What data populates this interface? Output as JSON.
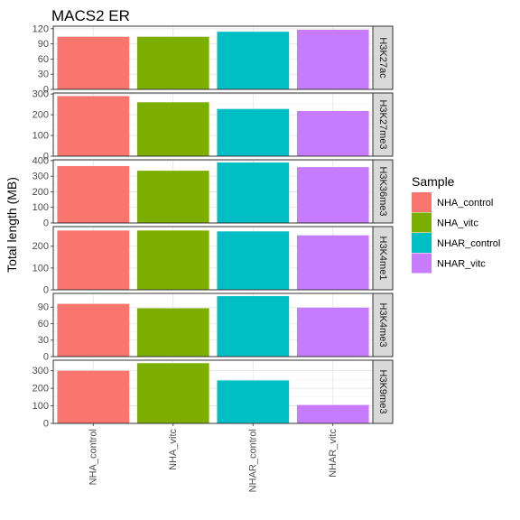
{
  "chart_data": {
    "type": "bar",
    "title": "MACS2 ER",
    "xlabel": "",
    "ylabel": "Total length (MB)",
    "categories": [
      "NHA_control",
      "NHA_vitc",
      "NHAR_control",
      "NHAR_vitc"
    ],
    "colors": [
      "#F8766D",
      "#7CAE00",
      "#00BFC4",
      "#C77CFF"
    ],
    "legend": {
      "title": "Sample",
      "position": "right",
      "entries": [
        "NHA_control",
        "NHA_vitc",
        "NHAR_control",
        "NHAR_vitc"
      ]
    },
    "grid": true,
    "panels": [
      {
        "label": "H3K27ac",
        "ylim": [
          0,
          125
        ],
        "ticks": [
          0,
          30,
          60,
          90,
          120
        ],
        "values": [
          104,
          104,
          114,
          118
        ]
      },
      {
        "label": "H3K27me3",
        "ylim": [
          0,
          305
        ],
        "ticks": [
          0,
          100,
          200,
          300
        ],
        "values": [
          290,
          260,
          228,
          218
        ]
      },
      {
        "label": "H3K36me3",
        "ylim": [
          0,
          405
        ],
        "ticks": [
          0,
          100,
          200,
          300,
          400
        ],
        "values": [
          365,
          335,
          388,
          358
        ]
      },
      {
        "label": "H3K4me1",
        "ylim": [
          0,
          290
        ],
        "ticks": [
          0,
          100,
          200
        ],
        "values": [
          272,
          272,
          268,
          250
        ]
      },
      {
        "label": "H3K4me3",
        "ylim": [
          0,
          115
        ],
        "ticks": [
          0,
          30,
          60,
          90
        ],
        "values": [
          96,
          88,
          110,
          89
        ]
      },
      {
        "label": "H3K9me3",
        "ylim": [
          0,
          360
        ],
        "ticks": [
          0,
          100,
          200,
          300
        ],
        "values": [
          300,
          343,
          245,
          105
        ]
      }
    ]
  }
}
